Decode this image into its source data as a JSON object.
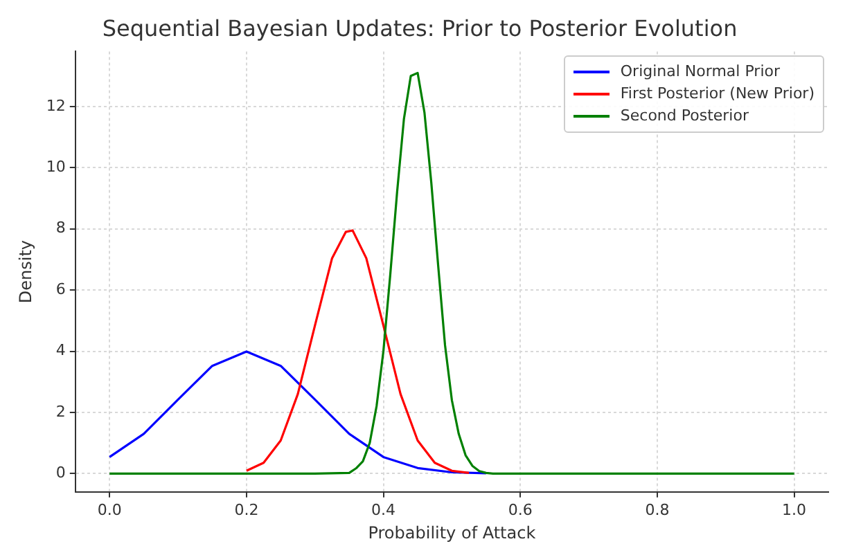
{
  "chart_data": {
    "type": "line",
    "title": "Sequential Bayesian Updates: Prior to Posterior Evolution",
    "xlabel": "Probability of Attack",
    "ylabel": "Density",
    "xlim": [
      -0.05,
      1.05
    ],
    "ylim": [
      -0.6,
      13.8
    ],
    "xticks": [
      {
        "value": 0,
        "label": "0.0"
      },
      {
        "value": 0.2,
        "label": "0.2"
      },
      {
        "value": 0.4,
        "label": "0.4"
      },
      {
        "value": 0.6,
        "label": "0.6"
      },
      {
        "value": 0.8,
        "label": "0.8"
      },
      {
        "value": 1,
        "label": "1.0"
      }
    ],
    "yticks": [
      0,
      2,
      4,
      6,
      8,
      10,
      12
    ],
    "grid": true,
    "legend": "top right",
    "marker": "none",
    "line_style": "solid",
    "series": [
      {
        "name": "Original Normal Prior",
        "color": "#0000ff",
        "x": [
          0,
          0.05,
          0.1,
          0.15,
          0.2,
          0.25,
          0.3,
          0.35,
          0.4,
          0.45,
          0.5,
          0.55
        ],
        "values": [
          0.54,
          1.3,
          2.42,
          3.52,
          3.99,
          3.52,
          2.42,
          1.3,
          0.54,
          0.18,
          0.04,
          0.01
        ]
      },
      {
        "name": "First Posterior (New Prior)",
        "color": "#ff0000",
        "x": [
          0.2,
          0.225,
          0.25,
          0.275,
          0.3,
          0.325,
          0.345,
          0.355,
          0.375,
          0.4,
          0.425,
          0.45,
          0.475,
          0.5,
          0.525
        ],
        "values": [
          0.09,
          0.35,
          1.08,
          2.6,
          4.84,
          7.04,
          7.9,
          7.95,
          7.04,
          4.84,
          2.6,
          1.08,
          0.35,
          0.09,
          0.02
        ]
      },
      {
        "name": "Second Posterior",
        "color": "#008000",
        "x": [
          0,
          0.3,
          0.35,
          0.36,
          0.37,
          0.38,
          0.39,
          0.4,
          0.41,
          0.42,
          0.43,
          0.44,
          0.45,
          0.46,
          0.47,
          0.48,
          0.49,
          0.5,
          0.51,
          0.52,
          0.53,
          0.54,
          0.55,
          0.56,
          0.6,
          0.8,
          1.0
        ],
        "values": [
          0,
          0,
          0.02,
          0.17,
          0.4,
          1.0,
          2.2,
          4.0,
          6.5,
          9.2,
          11.6,
          13.0,
          13.1,
          11.8,
          9.5,
          6.8,
          4.2,
          2.4,
          1.3,
          0.6,
          0.25,
          0.08,
          0.02,
          0,
          0,
          0,
          0
        ]
      }
    ]
  }
}
